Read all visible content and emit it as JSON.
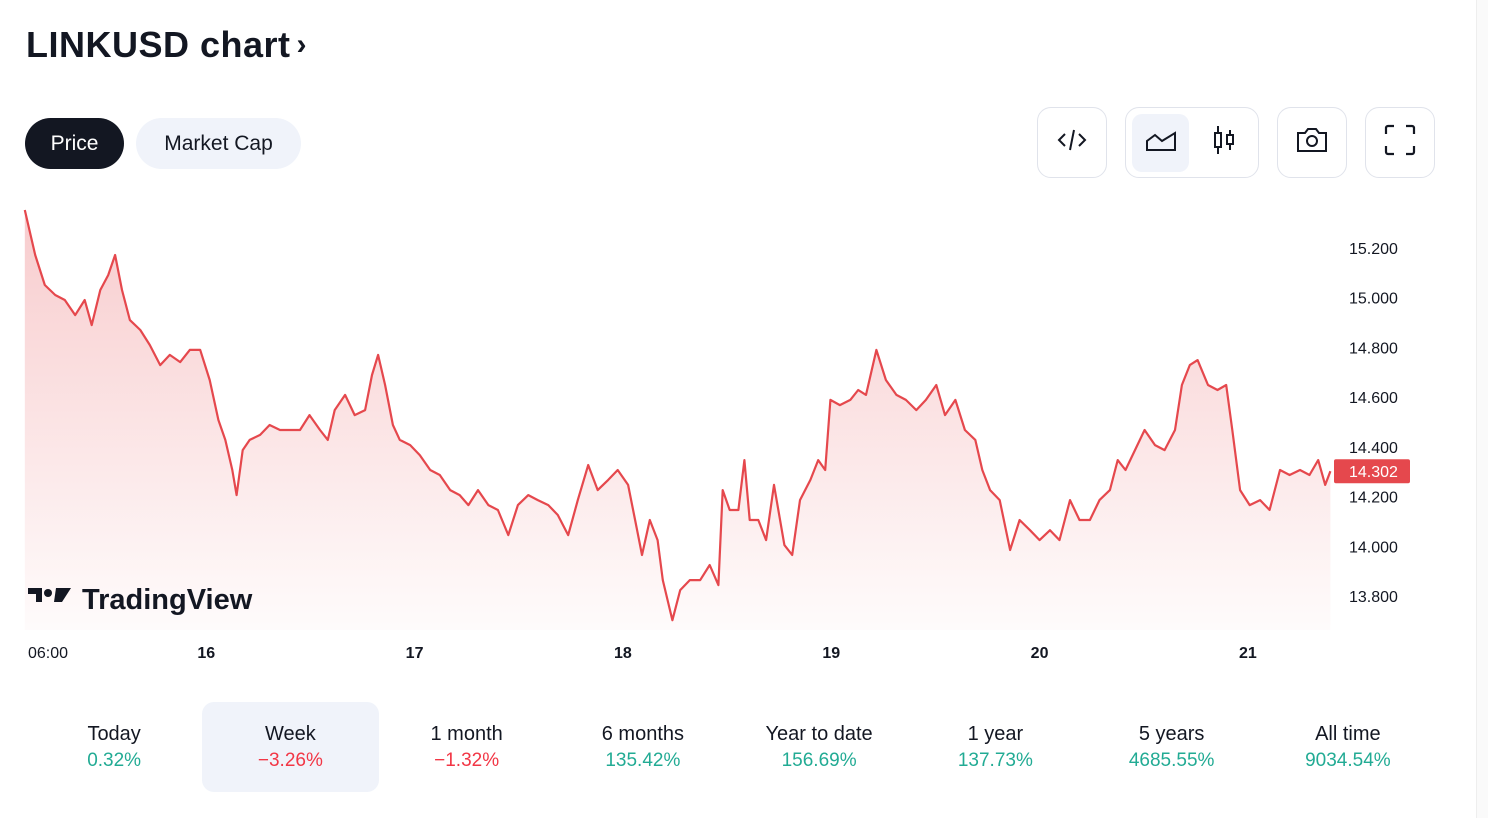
{
  "header": {
    "title": "LINKUSD chart",
    "chevron": "›"
  },
  "tabs": [
    {
      "label": "Price",
      "selected": true
    },
    {
      "label": "Market Cap",
      "selected": false
    }
  ],
  "toolbar": {
    "icons": [
      "embed-code-icon",
      "area-chart-icon",
      "candlestick-chart-icon",
      "camera-icon",
      "fullscreen-icon"
    ],
    "selected": "area-chart-icon"
  },
  "watermark": "TradingView",
  "colors": {
    "line": "#e5484d",
    "positive": "#22ab94",
    "negative": "#f23645",
    "price_label_bg": "#e5484d"
  },
  "chart_data": {
    "type": "area",
    "symbol": "LINKUSD",
    "x_unit": "hours since day 15 00:00",
    "x_ticks": [
      {
        "t": 6,
        "label": "06:00"
      },
      {
        "t": 24,
        "label": "16"
      },
      {
        "t": 48,
        "label": "17"
      },
      {
        "t": 72,
        "label": "18"
      },
      {
        "t": 96,
        "label": "19"
      },
      {
        "t": 120,
        "label": "20"
      },
      {
        "t": 144,
        "label": "21"
      }
    ],
    "y_ticks": [
      "15.200",
      "15.000",
      "14.800",
      "14.600",
      "14.400",
      "14.200",
      "14.000",
      "13.800"
    ],
    "ylim": [
      13.7,
      15.4
    ],
    "last_price": "14.302",
    "t": [
      3.1,
      4.3,
      5.4,
      6.6,
      7.7,
      8.9,
      10.0,
      10.8,
      11.8,
      12.7,
      13.5,
      14.3,
      15.2,
      16.4,
      17.5,
      18.7,
      19.8,
      21.0,
      22.1,
      23.3,
      24.4,
      25.4,
      26.2,
      27.0,
      27.5,
      28.2,
      29.0,
      30.2,
      31.3,
      32.5,
      33.6,
      34.8,
      35.9,
      37.1,
      38.0,
      38.8,
      40.0,
      41.1,
      42.3,
      43.1,
      43.8,
      44.6,
      45.5,
      46.3,
      47.5,
      48.6,
      49.8,
      50.9,
      52.1,
      53.2,
      54.2,
      55.3,
      56.5,
      57.6,
      58.8,
      59.9,
      61.1,
      62.2,
      63.4,
      64.5,
      65.7,
      66.8,
      68.0,
      69.1,
      70.3,
      71.4,
      72.6,
      73.4,
      74.2,
      75.1,
      76.0,
      76.6,
      77.7,
      78.6,
      79.7,
      80.9,
      82.0,
      83.0,
      83.5,
      84.3,
      85.3,
      86.0,
      86.6,
      87.6,
      88.5,
      89.4,
      90.6,
      91.5,
      92.4,
      93.6,
      94.5,
      95.3,
      95.9,
      97.0,
      98.2,
      99.1,
      100.0,
      101.2,
      102.3,
      103.5,
      104.6,
      105.8,
      106.9,
      108.1,
      109.1,
      110.3,
      111.4,
      112.6,
      113.4,
      114.3,
      115.4,
      116.6,
      117.7,
      118.9,
      120.0,
      121.2,
      122.3,
      123.5,
      124.6,
      125.8,
      126.9,
      128.1,
      129.0,
      129.9,
      131.0,
      132.1,
      133.3,
      134.4,
      135.6,
      136.4,
      137.3,
      138.2,
      139.4,
      140.5,
      141.5,
      142.2,
      143.1,
      144.2,
      145.4,
      146.5,
      147.7,
      148.8,
      150.0,
      151.1,
      152.1,
      152.9,
      153.5
    ],
    "price": [
      15.353,
      15.172,
      15.051,
      15.011,
      14.991,
      14.93,
      14.991,
      14.89,
      15.031,
      15.091,
      15.172,
      15.031,
      14.91,
      14.87,
      14.81,
      14.729,
      14.77,
      14.741,
      14.79,
      14.79,
      14.669,
      14.508,
      14.428,
      14.307,
      14.206,
      14.387,
      14.428,
      14.448,
      14.488,
      14.468,
      14.468,
      14.468,
      14.528,
      14.468,
      14.428,
      14.548,
      14.609,
      14.528,
      14.548,
      14.689,
      14.77,
      14.649,
      14.488,
      14.428,
      14.407,
      14.367,
      14.307,
      14.287,
      14.226,
      14.206,
      14.166,
      14.226,
      14.166,
      14.146,
      14.045,
      14.166,
      14.206,
      14.186,
      14.166,
      14.126,
      14.045,
      14.186,
      14.327,
      14.226,
      14.267,
      14.307,
      14.247,
      14.106,
      13.965,
      14.106,
      14.025,
      13.864,
      13.703,
      13.824,
      13.864,
      13.864,
      13.925,
      13.844,
      14.226,
      14.146,
      14.146,
      14.347,
      14.106,
      14.106,
      14.025,
      14.247,
      14.005,
      13.965,
      14.186,
      14.267,
      14.347,
      14.307,
      14.589,
      14.568,
      14.589,
      14.629,
      14.609,
      14.79,
      14.669,
      14.609,
      14.589,
      14.548,
      14.589,
      14.649,
      14.528,
      14.589,
      14.468,
      14.428,
      14.307,
      14.226,
      14.186,
      13.985,
      14.106,
      14.065,
      14.025,
      14.065,
      14.025,
      14.186,
      14.106,
      14.106,
      14.186,
      14.226,
      14.347,
      14.307,
      14.388,
      14.468,
      14.407,
      14.387,
      14.468,
      14.649,
      14.729,
      14.749,
      14.649,
      14.629,
      14.649,
      14.468,
      14.226,
      14.166,
      14.186,
      14.146,
      14.307,
      14.287,
      14.307,
      14.287,
      14.347,
      14.247,
      14.302
    ]
  },
  "stats": [
    {
      "label": "Today",
      "value": "0.32%",
      "sign": "pos",
      "selected": false
    },
    {
      "label": "Week",
      "value": "−3.26%",
      "sign": "neg",
      "selected": true
    },
    {
      "label": "1 month",
      "value": "−1.32%",
      "sign": "neg",
      "selected": false
    },
    {
      "label": "6 months",
      "value": "135.42%",
      "sign": "pos",
      "selected": false
    },
    {
      "label": "Year to date",
      "value": "156.69%",
      "sign": "pos",
      "selected": false
    },
    {
      "label": "1 year",
      "value": "137.73%",
      "sign": "pos",
      "selected": false
    },
    {
      "label": "5 years",
      "value": "4685.55%",
      "sign": "pos",
      "selected": false
    },
    {
      "label": "All time",
      "value": "9034.54%",
      "sign": "pos",
      "selected": false
    }
  ]
}
